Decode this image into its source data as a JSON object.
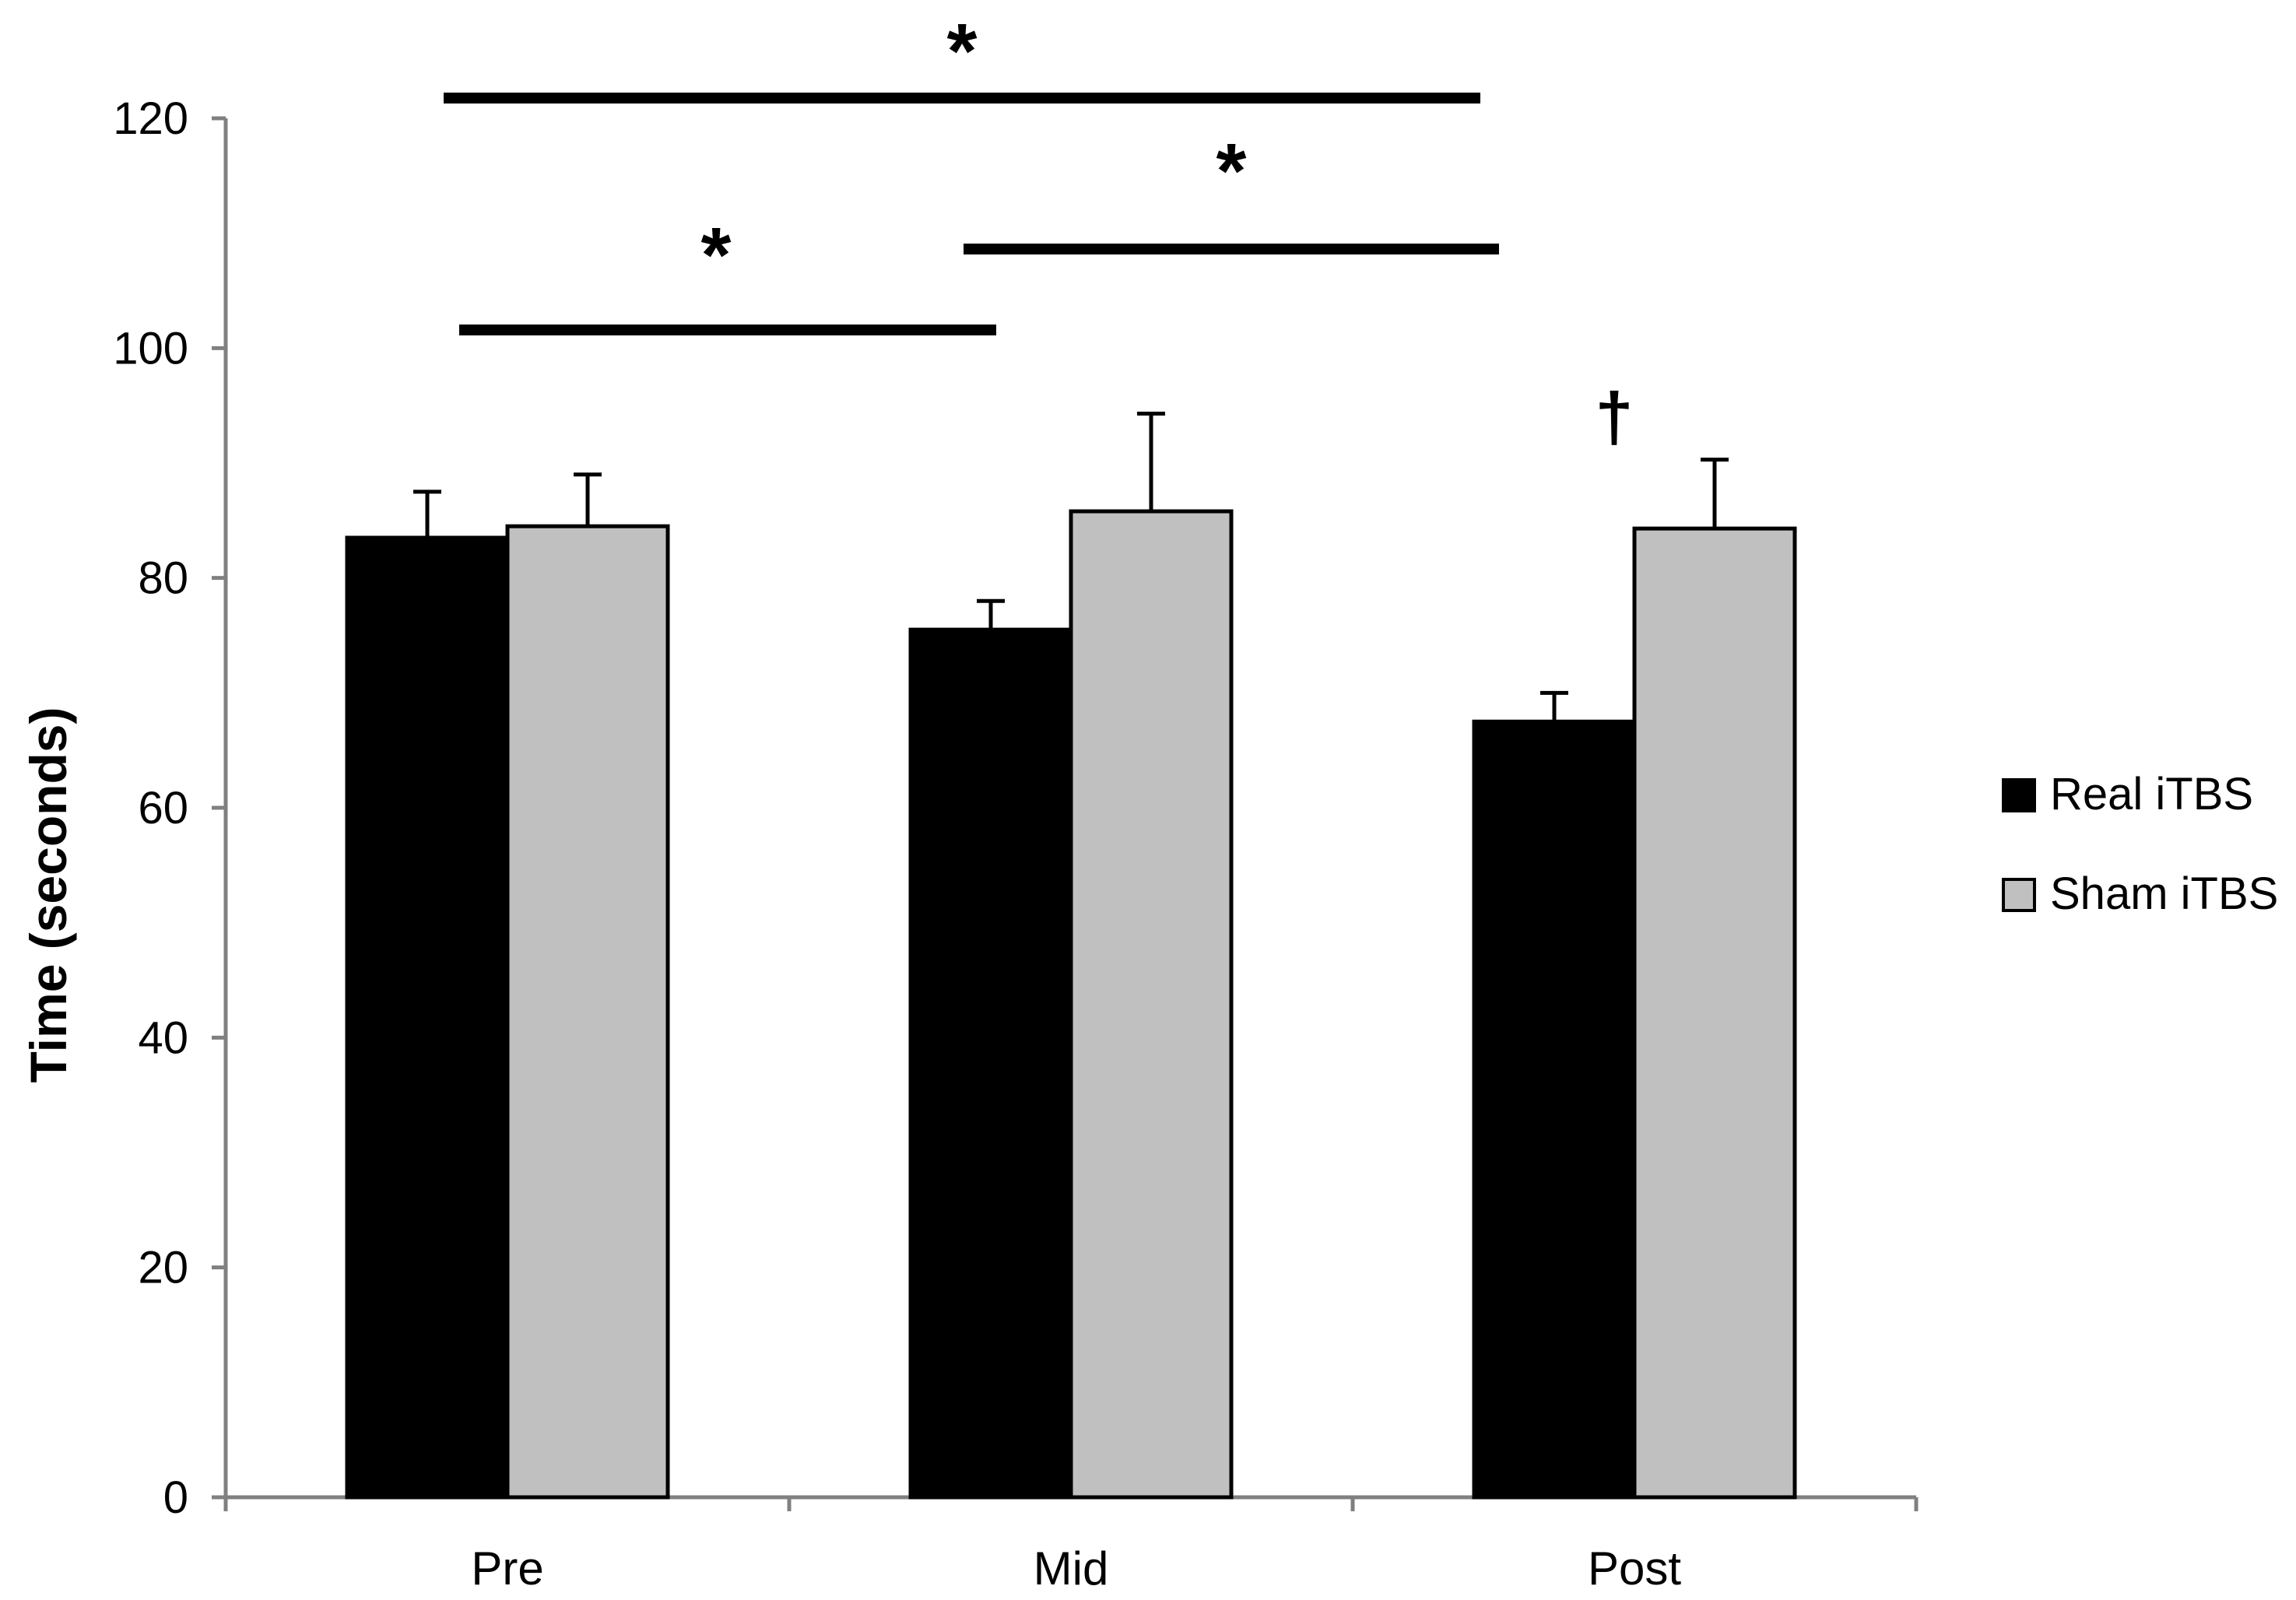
{
  "chart_data": {
    "type": "bar",
    "title": "",
    "xlabel": "",
    "ylabel": "Time (seconds)",
    "ylim": [
      0,
      120
    ],
    "yticks": [
      "0",
      "20",
      "40",
      "60",
      "80",
      "100",
      "120"
    ],
    "categories": [
      "Pre",
      "Mid",
      "Post"
    ],
    "legend_position": "right",
    "series": [
      {
        "name": "Real iTBS",
        "color": "#000000",
        "values": [
          83.5,
          75.5,
          67.5
        ],
        "errors": [
          4,
          2.5,
          2.5
        ]
      },
      {
        "name": "Sham iTBS",
        "color": "#c0c0c0",
        "values": [
          84.5,
          85.8,
          84.3
        ],
        "errors": [
          4.5,
          8.5,
          6
        ]
      }
    ],
    "significance": [
      {
        "label": "*",
        "from": "Pre",
        "to": "Post"
      },
      {
        "label": "*",
        "from": "Mid",
        "to": "Post"
      },
      {
        "label": "*",
        "from": "Pre",
        "to": "Mid"
      }
    ],
    "annotations": [
      {
        "label": "†",
        "category": "Post",
        "series": "Sham iTBS"
      }
    ]
  }
}
